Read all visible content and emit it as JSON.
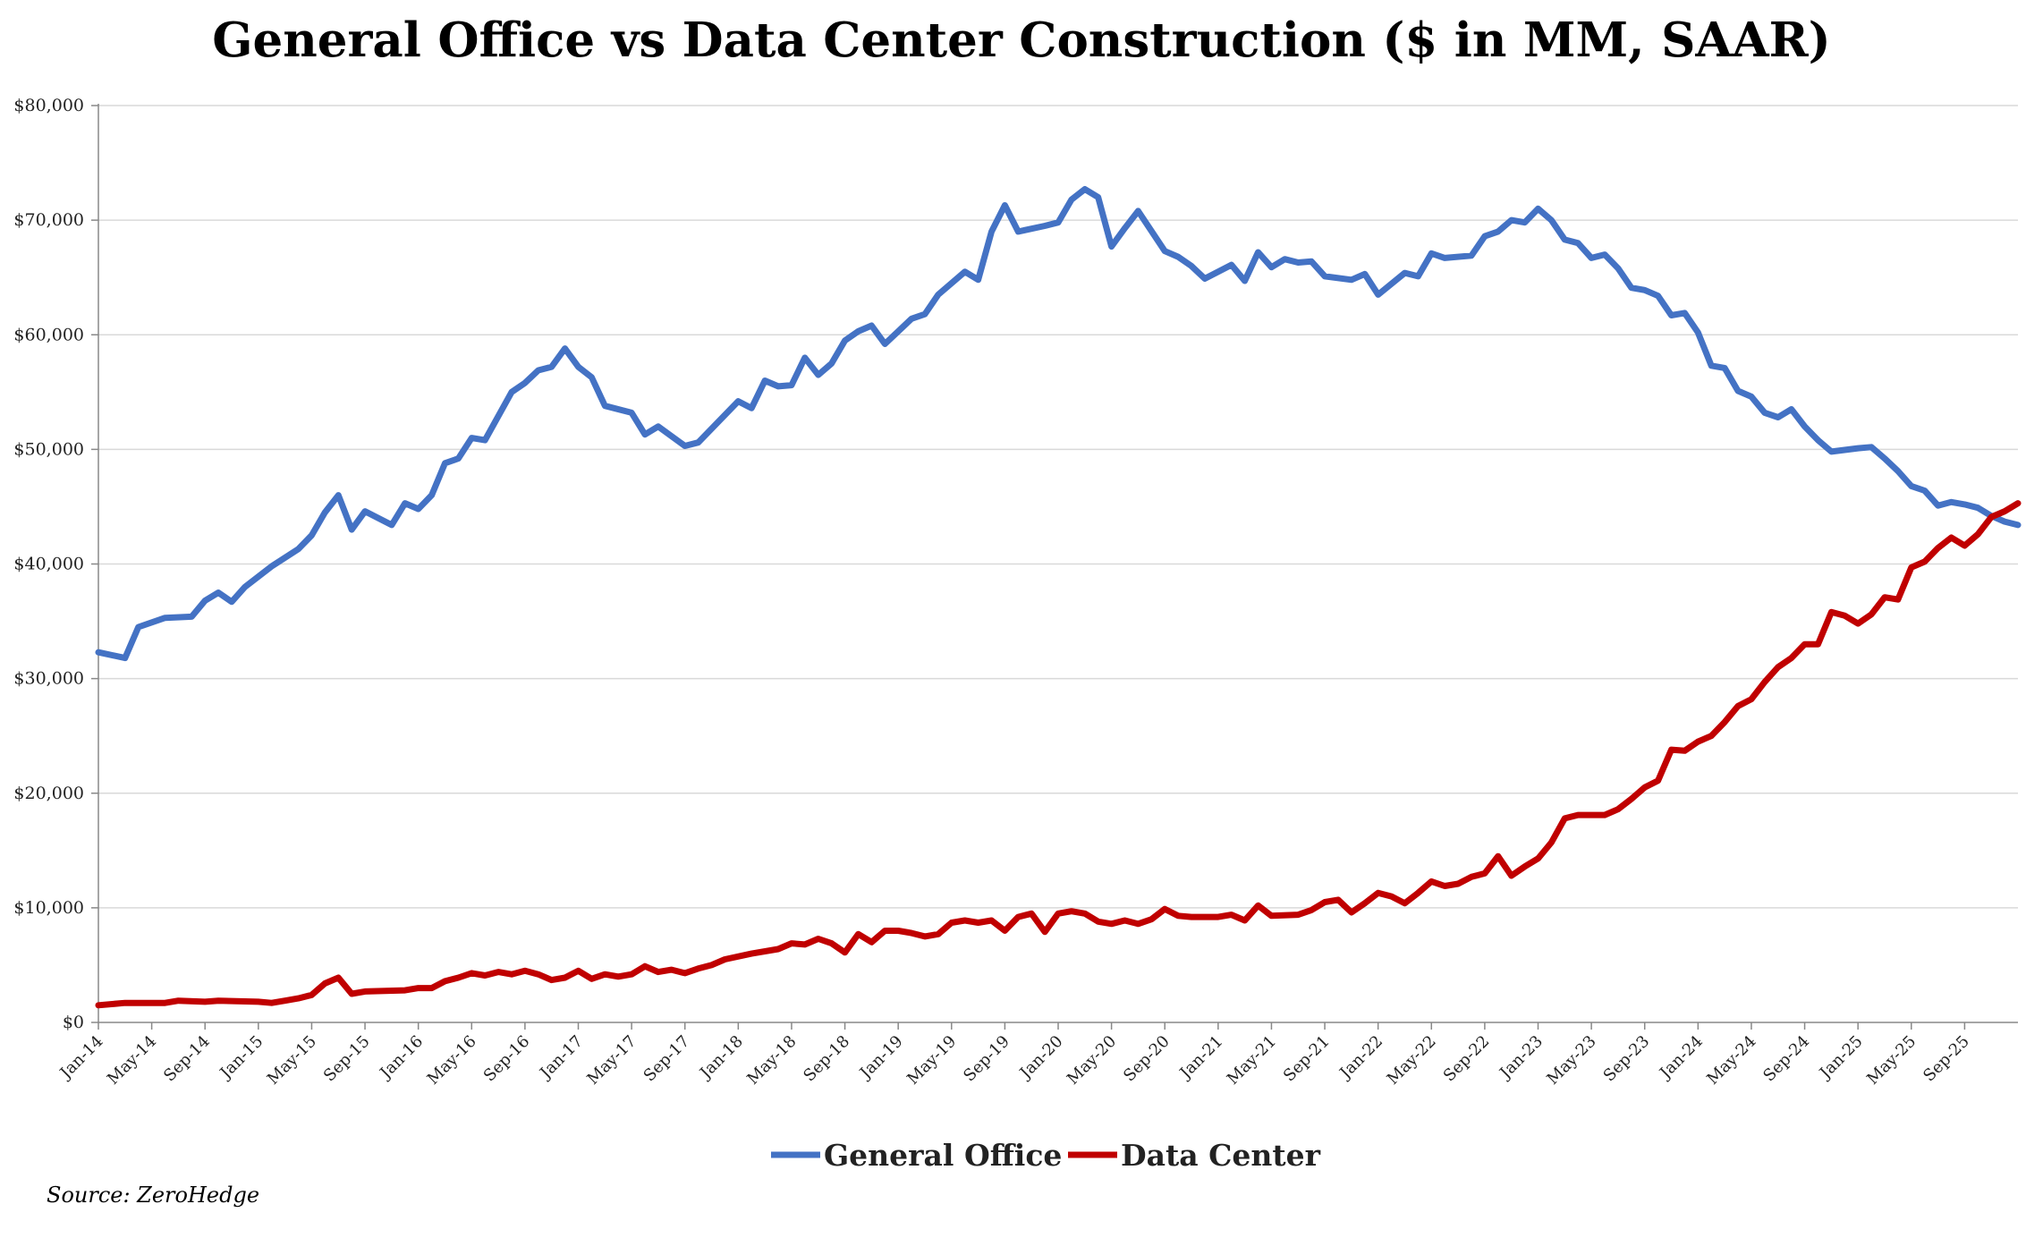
{
  "chart_data": {
    "type": "line",
    "title": "General Office vs Data Center Construction ($ in MM, SAAR)",
    "xlabel": "",
    "ylabel": "",
    "ylim": [
      0,
      80000
    ],
    "yticks": [
      0,
      10000,
      20000,
      30000,
      40000,
      50000,
      60000,
      70000,
      80000
    ],
    "ytick_labels": [
      "$0",
      "$10,000",
      "$20,000",
      "$30,000",
      "$40,000",
      "$50,000",
      "$60,000",
      "$70,000",
      "$80,000"
    ],
    "x_start": "Jan-14",
    "x_end": "Dec-25",
    "x_tick_labels": [
      "Jan-14",
      "May-14",
      "Sep-14",
      "Jan-15",
      "May-15",
      "Sep-15",
      "Jan-16",
      "May-16",
      "Sep-16",
      "Jan-17",
      "May-17",
      "Sep-17",
      "Jan-18",
      "May-18",
      "Sep-18",
      "Jan-19",
      "May-19",
      "Sep-19",
      "Jan-20",
      "May-20",
      "Sep-20",
      "Jan-21",
      "May-21",
      "Sep-21",
      "Jan-22",
      "May-22",
      "Sep-22",
      "Jan-23",
      "May-23",
      "Sep-23",
      "Jan-24",
      "May-24",
      "Sep-24",
      "Jan-25",
      "May-25",
      "Sep-25"
    ],
    "grid": "horizontal",
    "legend_position": "bottom-center",
    "series": [
      {
        "name": "General Office",
        "color": "#4472C4",
        "points": [
          [
            "Jan-14",
            32300
          ],
          [
            "Mar-14",
            31800
          ],
          [
            "Apr-14",
            34500
          ],
          [
            "Jun-14",
            35300
          ],
          [
            "Aug-14",
            35400
          ],
          [
            "Sep-14",
            36800
          ],
          [
            "Oct-14",
            37500
          ],
          [
            "Nov-14",
            36700
          ],
          [
            "Dec-14",
            38000
          ],
          [
            "Feb-15",
            39800
          ],
          [
            "Apr-15",
            41300
          ],
          [
            "May-15",
            42500
          ],
          [
            "Jun-15",
            44500
          ],
          [
            "Jul-15",
            46000
          ],
          [
            "Aug-15",
            43000
          ],
          [
            "Sep-15",
            44600
          ],
          [
            "Nov-15",
            43400
          ],
          [
            "Dec-15",
            45300
          ],
          [
            "Jan-16",
            44800
          ],
          [
            "Feb-16",
            46000
          ],
          [
            "Mar-16",
            48800
          ],
          [
            "Apr-16",
            49200
          ],
          [
            "May-16",
            51000
          ],
          [
            "Jun-16",
            50800
          ],
          [
            "Aug-16",
            55000
          ],
          [
            "Sep-16",
            55800
          ],
          [
            "Oct-16",
            56900
          ],
          [
            "Nov-16",
            57200
          ],
          [
            "Dec-16",
            58800
          ],
          [
            "Jan-17",
            57200
          ],
          [
            "Feb-17",
            56300
          ],
          [
            "Mar-17",
            53800
          ],
          [
            "May-17",
            53200
          ],
          [
            "Jun-17",
            51300
          ],
          [
            "Jul-17",
            52000
          ],
          [
            "Sep-17",
            50300
          ],
          [
            "Oct-17",
            50600
          ],
          [
            "Dec-17",
            53000
          ],
          [
            "Jan-18",
            54200
          ],
          [
            "Feb-18",
            53600
          ],
          [
            "Mar-18",
            56000
          ],
          [
            "Apr-18",
            55500
          ],
          [
            "May-18",
            55600
          ],
          [
            "Jun-18",
            58000
          ],
          [
            "Jul-18",
            56500
          ],
          [
            "Aug-18",
            57500
          ],
          [
            "Sep-18",
            59500
          ],
          [
            "Oct-18",
            60300
          ],
          [
            "Nov-18",
            60800
          ],
          [
            "Dec-18",
            59200
          ],
          [
            "Feb-19",
            61400
          ],
          [
            "Mar-19",
            61800
          ],
          [
            "Apr-19",
            63500
          ],
          [
            "Jun-19",
            65500
          ],
          [
            "Jul-19",
            64800
          ],
          [
            "Aug-19",
            69000
          ],
          [
            "Sep-19",
            71300
          ],
          [
            "Oct-19",
            69000
          ],
          [
            "Dec-19",
            69500
          ],
          [
            "Jan-20",
            69800
          ],
          [
            "Feb-20",
            71800
          ],
          [
            "Mar-20",
            72700
          ],
          [
            "Apr-20",
            72000
          ],
          [
            "May-20",
            67700
          ],
          [
            "Jun-20",
            69300
          ],
          [
            "Jul-20",
            70800
          ],
          [
            "Sep-20",
            67300
          ],
          [
            "Oct-20",
            66800
          ],
          [
            "Nov-20",
            66000
          ],
          [
            "Dec-20",
            64900
          ],
          [
            "Feb-21",
            66100
          ],
          [
            "Mar-21",
            64700
          ],
          [
            "Apr-21",
            67200
          ],
          [
            "May-21",
            65900
          ],
          [
            "Jun-21",
            66600
          ],
          [
            "Jul-21",
            66300
          ],
          [
            "Aug-21",
            66400
          ],
          [
            "Sep-21",
            65100
          ],
          [
            "Nov-21",
            64800
          ],
          [
            "Dec-21",
            65300
          ],
          [
            "Jan-22",
            63500
          ],
          [
            "Mar-22",
            65400
          ],
          [
            "Apr-22",
            65100
          ],
          [
            "May-22",
            67100
          ],
          [
            "Jun-22",
            66700
          ],
          [
            "Aug-22",
            66900
          ],
          [
            "Sep-22",
            68600
          ],
          [
            "Oct-22",
            69000
          ],
          [
            "Nov-22",
            70000
          ],
          [
            "Dec-22",
            69800
          ],
          [
            "Jan-23",
            71000
          ],
          [
            "Feb-23",
            70000
          ],
          [
            "Mar-23",
            68300
          ],
          [
            "Apr-23",
            68000
          ],
          [
            "May-23",
            66700
          ],
          [
            "Jun-23",
            67000
          ],
          [
            "Jul-23",
            65800
          ],
          [
            "Aug-23",
            64100
          ],
          [
            "Sep-23",
            63900
          ],
          [
            "Oct-23",
            63400
          ],
          [
            "Nov-23",
            61700
          ],
          [
            "Dec-23",
            61900
          ],
          [
            "Jan-24",
            60200
          ],
          [
            "Feb-24",
            57300
          ],
          [
            "Mar-24",
            57100
          ],
          [
            "Apr-24",
            55100
          ],
          [
            "May-24",
            54600
          ],
          [
            "Jun-24",
            53200
          ],
          [
            "Jul-24",
            52800
          ],
          [
            "Aug-24",
            53500
          ],
          [
            "Sep-24",
            52000
          ],
          [
            "Oct-24",
            50800
          ],
          [
            "Nov-24",
            49800
          ],
          [
            "Jan-25",
            50100
          ],
          [
            "Feb-25",
            50200
          ],
          [
            "Mar-25",
            49200
          ],
          [
            "Apr-25",
            48100
          ],
          [
            "May-25",
            46800
          ],
          [
            "Jun-25",
            46400
          ],
          [
            "Jul-25",
            45100
          ],
          [
            "Aug-25",
            45400
          ],
          [
            "Sep-25",
            45200
          ],
          [
            "Oct-25",
            44900
          ],
          [
            "Nov-25",
            44200
          ],
          [
            "Dec-25",
            43700
          ],
          [
            "Jan-26",
            43400
          ]
        ]
      },
      {
        "name": "Data Center",
        "color": "#C00000",
        "points": [
          [
            "Jan-14",
            1500
          ],
          [
            "Mar-14",
            1700
          ],
          [
            "Jun-14",
            1700
          ],
          [
            "Jul-14",
            1900
          ],
          [
            "Sep-14",
            1800
          ],
          [
            "Oct-14",
            1900
          ],
          [
            "Jan-15",
            1800
          ],
          [
            "Feb-15",
            1700
          ],
          [
            "Mar-15",
            1900
          ],
          [
            "Apr-15",
            2100
          ],
          [
            "May-15",
            2400
          ],
          [
            "Jun-15",
            3400
          ],
          [
            "Jul-15",
            3900
          ],
          [
            "Aug-15",
            2500
          ],
          [
            "Sep-15",
            2700
          ],
          [
            "Dec-15",
            2800
          ],
          [
            "Jan-16",
            3000
          ],
          [
            "Feb-16",
            3000
          ],
          [
            "Mar-16",
            3600
          ],
          [
            "Apr-16",
            3900
          ],
          [
            "May-16",
            4300
          ],
          [
            "Jun-16",
            4100
          ],
          [
            "Jul-16",
            4400
          ],
          [
            "Aug-16",
            4200
          ],
          [
            "Sep-16",
            4500
          ],
          [
            "Oct-16",
            4200
          ],
          [
            "Nov-16",
            3700
          ],
          [
            "Dec-16",
            3900
          ],
          [
            "Jan-17",
            4500
          ],
          [
            "Feb-17",
            3800
          ],
          [
            "Mar-17",
            4200
          ],
          [
            "Apr-17",
            4000
          ],
          [
            "May-17",
            4200
          ],
          [
            "Jun-17",
            4900
          ],
          [
            "Jul-17",
            4400
          ],
          [
            "Aug-17",
            4600
          ],
          [
            "Sep-17",
            4300
          ],
          [
            "Oct-17",
            4700
          ],
          [
            "Nov-17",
            5000
          ],
          [
            "Dec-17",
            5500
          ],
          [
            "Feb-18",
            6000
          ],
          [
            "Apr-18",
            6400
          ],
          [
            "May-18",
            6900
          ],
          [
            "Jun-18",
            6800
          ],
          [
            "Jul-18",
            7300
          ],
          [
            "Aug-18",
            6900
          ],
          [
            "Sep-18",
            6100
          ],
          [
            "Oct-18",
            7700
          ],
          [
            "Nov-18",
            7000
          ],
          [
            "Dec-18",
            8000
          ],
          [
            "Jan-19",
            8000
          ],
          [
            "Feb-19",
            7800
          ],
          [
            "Mar-19",
            7500
          ],
          [
            "Apr-19",
            7700
          ],
          [
            "May-19",
            8700
          ],
          [
            "Jun-19",
            8900
          ],
          [
            "Jul-19",
            8700
          ],
          [
            "Aug-19",
            8900
          ],
          [
            "Sep-19",
            8000
          ],
          [
            "Oct-19",
            9200
          ],
          [
            "Nov-19",
            9500
          ],
          [
            "Dec-19",
            7900
          ],
          [
            "Jan-20",
            9500
          ],
          [
            "Feb-20",
            9700
          ],
          [
            "Mar-20",
            9500
          ],
          [
            "Apr-20",
            8800
          ],
          [
            "May-20",
            8600
          ],
          [
            "Jun-20",
            8900
          ],
          [
            "Jul-20",
            8600
          ],
          [
            "Aug-20",
            9000
          ],
          [
            "Sep-20",
            9900
          ],
          [
            "Oct-20",
            9300
          ],
          [
            "Nov-20",
            9200
          ],
          [
            "Jan-21",
            9200
          ],
          [
            "Feb-21",
            9400
          ],
          [
            "Mar-21",
            8900
          ],
          [
            "Apr-21",
            10200
          ],
          [
            "May-21",
            9300
          ],
          [
            "Jul-21",
            9400
          ],
          [
            "Aug-21",
            9800
          ],
          [
            "Sep-21",
            10500
          ],
          [
            "Oct-21",
            10700
          ],
          [
            "Nov-21",
            9600
          ],
          [
            "Dec-21",
            10400
          ],
          [
            "Jan-22",
            11300
          ],
          [
            "Feb-22",
            11000
          ],
          [
            "Mar-22",
            10400
          ],
          [
            "Apr-22",
            11300
          ],
          [
            "May-22",
            12300
          ],
          [
            "Jun-22",
            11900
          ],
          [
            "Jul-22",
            12100
          ],
          [
            "Aug-22",
            12700
          ],
          [
            "Sep-22",
            13000
          ],
          [
            "Oct-22",
            14500
          ],
          [
            "Nov-22",
            12800
          ],
          [
            "Dec-22",
            13600
          ],
          [
            "Jan-23",
            14300
          ],
          [
            "Feb-23",
            15700
          ],
          [
            "Mar-23",
            17800
          ],
          [
            "Apr-23",
            18100
          ],
          [
            "Jun-23",
            18100
          ],
          [
            "Jul-23",
            18600
          ],
          [
            "Aug-23",
            19500
          ],
          [
            "Sep-23",
            20500
          ],
          [
            "Oct-23",
            21100
          ],
          [
            "Nov-23",
            23800
          ],
          [
            "Dec-23",
            23700
          ],
          [
            "Jan-24",
            24500
          ],
          [
            "Feb-24",
            25000
          ],
          [
            "Mar-24",
            26200
          ],
          [
            "Apr-24",
            27600
          ],
          [
            "May-24",
            28200
          ],
          [
            "Jun-24",
            29700
          ],
          [
            "Jul-24",
            31000
          ],
          [
            "Aug-24",
            31800
          ],
          [
            "Sep-24",
            33000
          ],
          [
            "Oct-24",
            33000
          ],
          [
            "Nov-24",
            35800
          ],
          [
            "Dec-24",
            35500
          ],
          [
            "Jan-25",
            34800
          ],
          [
            "Feb-25",
            35600
          ],
          [
            "Mar-25",
            37100
          ],
          [
            "Apr-25",
            36900
          ],
          [
            "May-25",
            39700
          ],
          [
            "Jun-25",
            40200
          ],
          [
            "Jul-25",
            41400
          ],
          [
            "Aug-25",
            42300
          ],
          [
            "Sep-25",
            41600
          ],
          [
            "Oct-25",
            42600
          ],
          [
            "Nov-25",
            44100
          ],
          [
            "Dec-25",
            44600
          ],
          [
            "Jan-26",
            45300
          ]
        ]
      }
    ]
  },
  "source": "Source: ZeroHedge"
}
